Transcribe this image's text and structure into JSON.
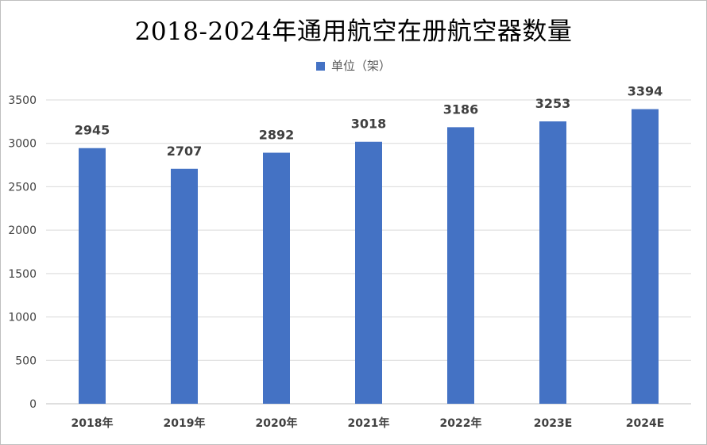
{
  "chart_data": {
    "type": "bar",
    "title": "2018-2024年通用航空在册航空器数量",
    "legend": {
      "position": "top",
      "entries": [
        "单位（架）"
      ]
    },
    "categories": [
      "2018年",
      "2019年",
      "2020年",
      "2021年",
      "2022年",
      "2023E",
      "2024E"
    ],
    "series": [
      {
        "name": "单位（架）",
        "values": [
          2945,
          2707,
          2892,
          3018,
          3186,
          3253,
          3394
        ],
        "color": "#4472c4"
      }
    ],
    "data_labels": [
      "2945",
      "2707",
      "2892",
      "3018",
      "3186",
      "3253",
      "3394"
    ],
    "ylim": [
      0,
      3500
    ],
    "yticks": [
      "0",
      "500",
      "1000",
      "1500",
      "2000",
      "2500",
      "3000",
      "3500"
    ],
    "xlabel": "",
    "ylabel": "",
    "grid": true
  }
}
